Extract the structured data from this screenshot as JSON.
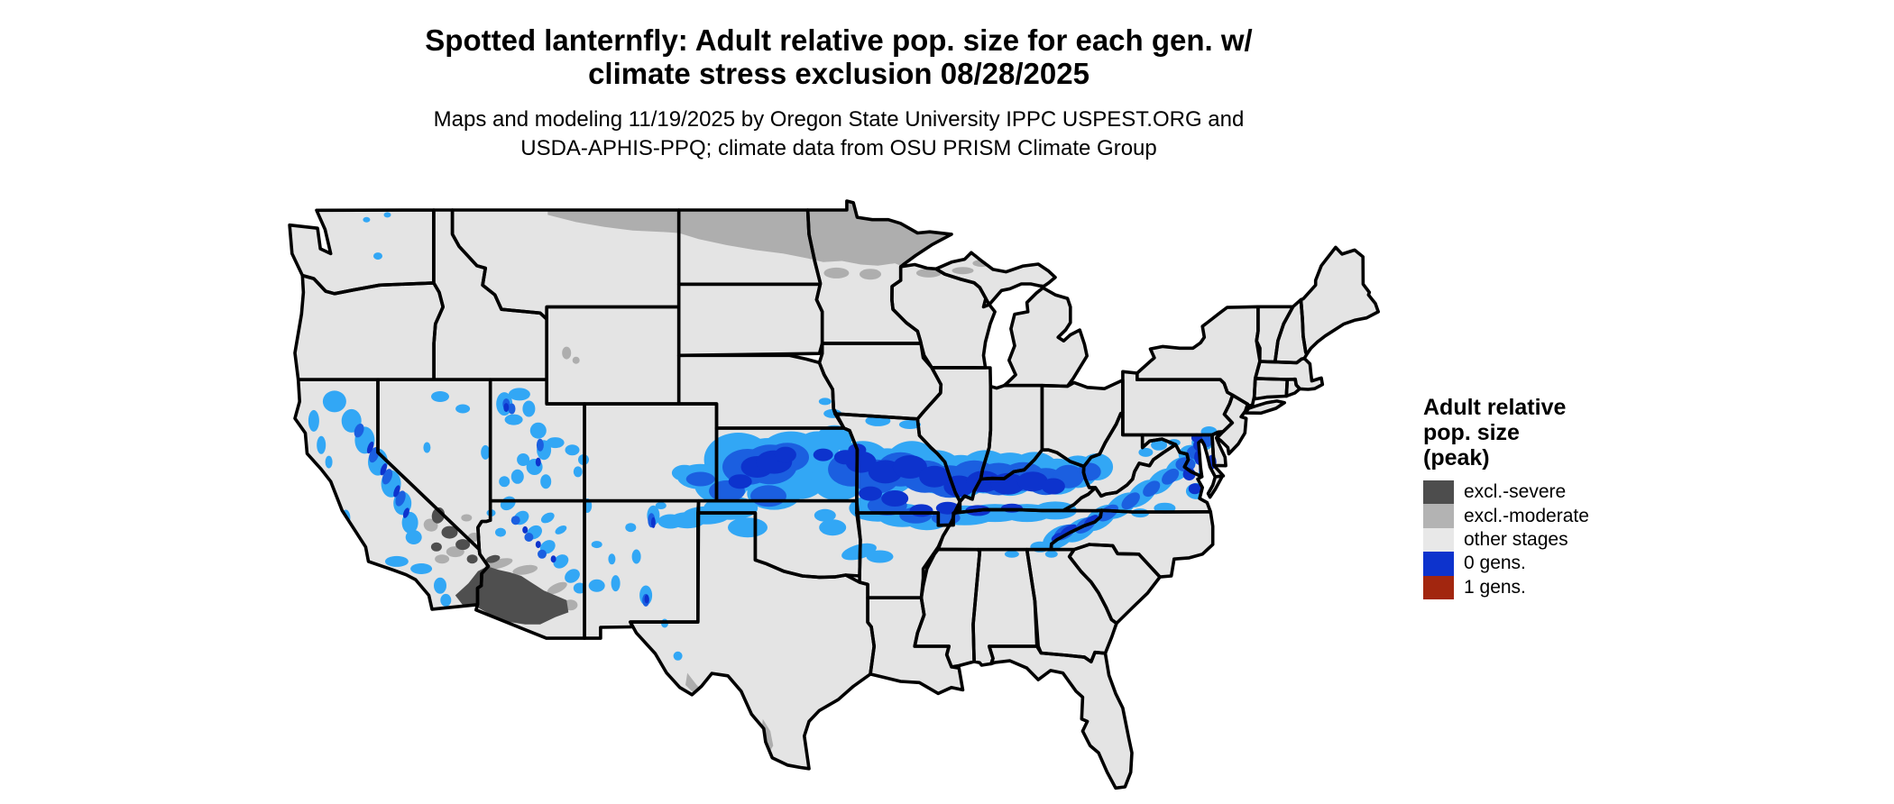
{
  "header": {
    "title_line1": "Spotted lanternfly: Adult relative pop. size for each gen. w/",
    "title_line2": "climate stress exclusion 08/28/2025",
    "subtitle_line1": "Maps and modeling 11/19/2025 by Oregon State University IPPC USPEST.ORG and",
    "subtitle_line2": "USDA-APHIS-PPQ; climate data from OSU PRISM Climate Group"
  },
  "legend": {
    "title_line1": "Adult relative",
    "title_line2": "pop. size",
    "title_line3": "(peak)",
    "items": [
      {
        "label": "excl.-severe",
        "color": "#4d4d4d"
      },
      {
        "label": "excl.-moderate",
        "color": "#b3b3b3"
      },
      {
        "label": "other stages",
        "color": "#e8e8e8"
      },
      {
        "label": "0 gens.",
        "color": "#0d33cd"
      },
      {
        "label": "1 gens.",
        "color": "#a2260f"
      }
    ]
  },
  "colors": {
    "background": "#ffffff",
    "map_base": "#e4e4e4",
    "state_border": "#000000",
    "excl_severe": "#4f4f4f",
    "excl_moderate": "#aeaeae",
    "other_stages": "#e8e8e8",
    "gen0_light": "#32a7f5",
    "gen0_mid": "#1b5fe0",
    "gen0_deep": "#0d33cd",
    "gen1": "#a2260f"
  }
}
